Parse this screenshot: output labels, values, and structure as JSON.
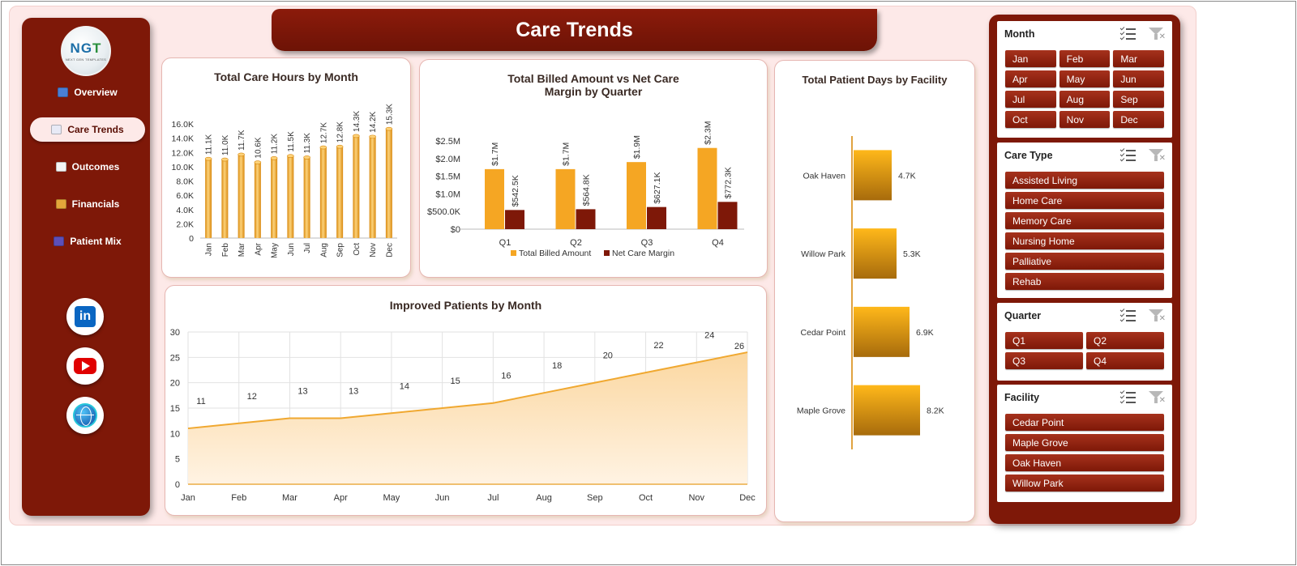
{
  "header": {
    "title": "Care Trends"
  },
  "logo": {
    "brand_a": "NG",
    "brand_b": "T",
    "tagline": "NEXT GEN TEMPLATES"
  },
  "nav": {
    "items": [
      {
        "label": "Overview",
        "icon": "dashboard-icon",
        "active": false
      },
      {
        "label": "Care Trends",
        "icon": "trend-chart-icon",
        "active": true
      },
      {
        "label": "Outcomes",
        "icon": "clipboard-icon",
        "active": false
      },
      {
        "label": "Financials",
        "icon": "money-bag-icon",
        "active": false
      },
      {
        "label": "Patient Mix",
        "icon": "people-icon",
        "active": false
      }
    ]
  },
  "social": {
    "linkedin": "in"
  },
  "colors": {
    "maroon": "#7e1808",
    "bar": "#f5a623",
    "dark_bar": "#7e1808",
    "area_line": "#f0a830"
  },
  "chart_data": [
    {
      "id": "care-hours",
      "type": "bar",
      "title": "Total Care Hours by Month",
      "categories": [
        "Jan",
        "Feb",
        "Mar",
        "Apr",
        "May",
        "Jun",
        "Jul",
        "Aug",
        "Sep",
        "Oct",
        "Nov",
        "Dec"
      ],
      "values": [
        11.1,
        11.0,
        11.7,
        10.6,
        11.2,
        11.5,
        11.3,
        12.7,
        12.8,
        14.3,
        14.2,
        15.3
      ],
      "data_labels": [
        "11.1K",
        "11.0K",
        "11.7K",
        "10.6K",
        "11.2K",
        "11.5K",
        "11.3K",
        "12.7K",
        "12.8K",
        "14.3K",
        "14.2K",
        "15.3K"
      ],
      "y_ticks": [
        "0",
        "2.0K",
        "4.0K",
        "6.0K",
        "8.0K",
        "10.0K",
        "12.0K",
        "14.0K",
        "16.0K"
      ],
      "ylim": [
        0,
        16
      ]
    },
    {
      "id": "billed-margin",
      "type": "bar",
      "title": "Total Billed Amount vs Net Care Margin by Quarter",
      "categories": [
        "Q1",
        "Q2",
        "Q3",
        "Q4"
      ],
      "series": [
        {
          "name": "Total Billed Amount",
          "values": [
            1.7,
            1.7,
            1.9,
            2.3
          ],
          "labels": [
            "$1.7M",
            "$1.7M",
            "$1.9M",
            "$2.3M"
          ]
        },
        {
          "name": "Net Care Margin",
          "values": [
            0.5425,
            0.5648,
            0.6271,
            0.7723
          ],
          "labels": [
            "$542.5K",
            "$564.8K",
            "$627.1K",
            "$772.3K"
          ]
        }
      ],
      "y_ticks": [
        "$0",
        "$500.0K",
        "$1.0M",
        "$1.5M",
        "$2.0M",
        "$2.5M"
      ],
      "ylim": [
        0,
        2.5
      ],
      "legend": "bottom"
    },
    {
      "id": "patient-days",
      "type": "bar",
      "title": "Total Patient Days by Facility",
      "orientation": "horizontal",
      "categories": [
        "Oak Haven",
        "Willow Park",
        "Cedar Point",
        "Maple Grove"
      ],
      "values": [
        4.7,
        5.3,
        6.9,
        8.2
      ],
      "data_labels": [
        "4.7K",
        "5.3K",
        "6.9K",
        "8.2K"
      ]
    },
    {
      "id": "improved-patients",
      "type": "area",
      "title": "Improved Patients by Month",
      "categories": [
        "Jan",
        "Feb",
        "Mar",
        "Apr",
        "May",
        "Jun",
        "Jul",
        "Aug",
        "Sep",
        "Oct",
        "Nov",
        "Dec"
      ],
      "values": [
        11,
        12,
        13,
        13,
        14,
        15,
        16,
        18,
        20,
        22,
        24,
        26
      ],
      "y_ticks": [
        "0",
        "5",
        "10",
        "15",
        "20",
        "25",
        "30"
      ],
      "ylim": [
        0,
        30
      ],
      "grid": true
    }
  ],
  "slicers": [
    {
      "title": "Month",
      "columns": 3,
      "items": [
        "Jan",
        "Feb",
        "Mar",
        "Apr",
        "May",
        "Jun",
        "Jul",
        "Aug",
        "Sep",
        "Oct",
        "Nov",
        "Dec"
      ]
    },
    {
      "title": "Care Type",
      "columns": 1,
      "items": [
        "Assisted Living",
        "Home Care",
        "Memory Care",
        "Nursing Home",
        "Palliative",
        "Rehab"
      ]
    },
    {
      "title": "Quarter",
      "columns": 2,
      "items": [
        "Q1",
        "Q2",
        "Q3",
        "Q4"
      ]
    },
    {
      "title": "Facility",
      "columns": 1,
      "items": [
        "Cedar Point",
        "Maple Grove",
        "Oak Haven",
        "Willow Park"
      ]
    }
  ]
}
